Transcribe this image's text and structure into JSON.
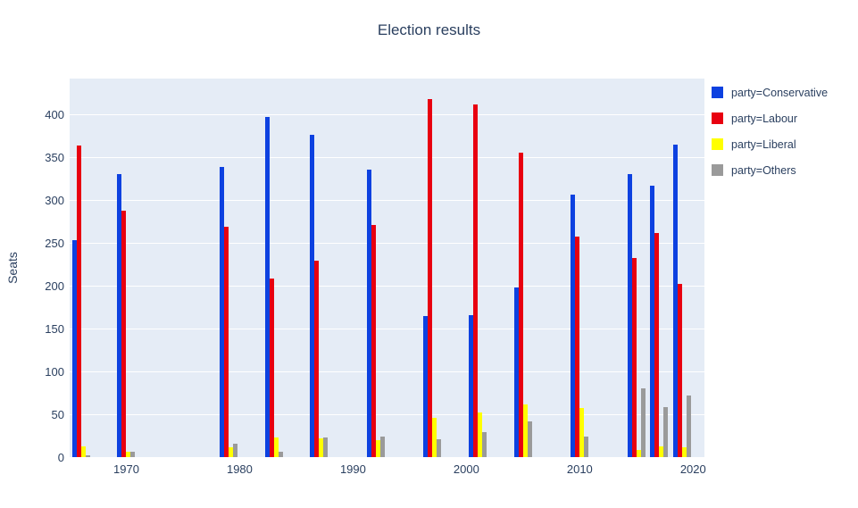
{
  "title": "Election results",
  "colors": {
    "background": "#ffffff",
    "plot_background": "#e5ecf6",
    "gridline": "#ffffff",
    "text": "#2a3f5f",
    "conservative": "#0d41e0",
    "labour": "#e80010",
    "liberal": "#ffff00",
    "others": "#9a9a9a"
  },
  "chart_data": {
    "type": "bar",
    "title": "Election results",
    "xlabel": "",
    "ylabel": "Seats",
    "x": [
      1966,
      1970,
      1979,
      1983,
      1987,
      1992,
      1997,
      2001,
      2005,
      2010,
      2015,
      2017,
      2019
    ],
    "series": [
      {
        "name": "party=Conservative",
        "color": "#0d41e0",
        "values": [
          253,
          330,
          339,
          397,
          376,
          336,
          165,
          166,
          198,
          306,
          330,
          317,
          365
        ]
      },
      {
        "name": "party=Labour",
        "color": "#e80010",
        "values": [
          364,
          288,
          269,
          209,
          229,
          271,
          418,
          412,
          355,
          258,
          232,
          262,
          202
        ]
      },
      {
        "name": "party=Liberal",
        "color": "#ffff00",
        "values": [
          12,
          6,
          11,
          23,
          22,
          20,
          46,
          52,
          62,
          57,
          8,
          12,
          11
        ]
      },
      {
        "name": "party=Others",
        "color": "#9a9a9a",
        "values": [
          2,
          6,
          16,
          6,
          23,
          24,
          21,
          29,
          42,
          24,
          80,
          58,
          72
        ]
      }
    ],
    "xlim": [
      1965,
      2021
    ],
    "ylim": [
      0,
      442
    ],
    "yticks": [
      0,
      50,
      100,
      150,
      200,
      250,
      300,
      350,
      400
    ],
    "xticks": [
      1970,
      1980,
      1990,
      2000,
      2010,
      2020
    ],
    "grid": true,
    "legend_position": "right"
  }
}
